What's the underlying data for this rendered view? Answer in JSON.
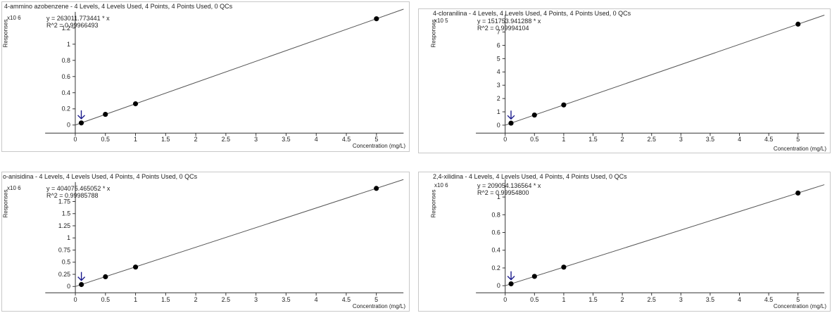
{
  "chart_data": [
    {
      "type": "scatter",
      "title": "4-ammino azobenzene - 4 Levels, 4 Levels Used, 4 Points, 4 Points Used, 0 QCs",
      "equation": "y = 263011.773441 * x",
      "r2": "R^2 = 0.99966493",
      "scale_label": "x10 6",
      "ylabel": "Responses",
      "xlabel": "Concentration (mg/L)",
      "x_ticks": [
        "0",
        "0.5",
        "1",
        "1.5",
        "2",
        "2.5",
        "3",
        "3.5",
        "4",
        "4.5",
        "5"
      ],
      "y_ticks": [
        "0",
        "0.2",
        "0.4",
        "0.6",
        "0.8",
        "1",
        "1.2"
      ],
      "xlim": [
        -0.5,
        5.45
      ],
      "ylim": [
        -0.1,
        1.4
      ],
      "series": [
        {
          "x": [
            0.1,
            0.5,
            1,
            5
          ],
          "y": [
            0.026,
            0.132,
            0.263,
            1.315
          ]
        }
      ],
      "fit": {
        "slope": 0.263011773441
      },
      "arrow_at_x": 0.1,
      "color": "#000000",
      "arrow_color": "#1a1a8c"
    },
    {
      "type": "scatter",
      "title": "4-cloranilina - 4 Levels, 4 Levels Used, 4 Points, 4 Points Used, 0 QCs",
      "equation": "y = 151753.941288 * x",
      "r2": "R^2 = 0.99994104",
      "scale_label": "x10 5",
      "ylabel": "Responses",
      "xlabel": "Concentration (mg/L)",
      "x_ticks": [
        "0",
        "0.5",
        "1",
        "1.5",
        "2",
        "2.5",
        "3",
        "3.5",
        "4",
        "4.5",
        "5"
      ],
      "y_ticks": [
        "0",
        "1",
        "2",
        "3",
        "4",
        "5",
        "6",
        "7"
      ],
      "xlim": [
        -0.5,
        5.45
      ],
      "ylim": [
        -0.6,
        8.3
      ],
      "series": [
        {
          "x": [
            0.1,
            0.5,
            1,
            5
          ],
          "y": [
            0.15,
            0.76,
            1.52,
            7.59
          ]
        }
      ],
      "fit": {
        "slope": 1.51753941288
      },
      "arrow_at_x": 0.1,
      "color": "#000000",
      "arrow_color": "#1a1a8c"
    },
    {
      "type": "scatter",
      "title": "o-anisidina - 4 Levels, 4 Levels Used, 4 Points, 4 Points Used, 0 QCs",
      "equation": "y = 404075.465052 * x",
      "r2": "R^2 = 0.99985788",
      "scale_label": "x10 6",
      "ylabel": "Responses",
      "xlabel": "Concentration (mg/L)",
      "x_ticks": [
        "0",
        "0.5",
        "1",
        "1.5",
        "2",
        "2.5",
        "3",
        "3.5",
        "4",
        "4.5",
        "5"
      ],
      "y_ticks": [
        "0",
        "0.25",
        "0.5",
        "0.75",
        "1",
        "1.25",
        "1.5",
        "1.75"
      ],
      "xlim": [
        -0.5,
        5.45
      ],
      "ylim": [
        -0.13,
        2.15
      ],
      "series": [
        {
          "x": [
            0.1,
            0.5,
            1,
            5
          ],
          "y": [
            0.04,
            0.2,
            0.4,
            2.02
          ]
        }
      ],
      "fit": {
        "slope": 0.404075465052
      },
      "arrow_at_x": 0.1,
      "color": "#000000",
      "arrow_color": "#1a1a8c"
    },
    {
      "type": "scatter",
      "title": "2,4-xilidina - 4 Levels, 4 Levels Used, 4 Points, 4 Points Used, 0 QCs",
      "equation": "y = 209054.136564 * x",
      "r2": "R^2 = 0.99954800",
      "scale_label": "x10 6",
      "ylabel": "Responses",
      "xlabel": "Concentration (mg/L)",
      "x_ticks": [
        "0",
        "0.5",
        "1",
        "1.5",
        "2",
        "2.5",
        "3",
        "3.5",
        "4",
        "4.5",
        "5"
      ],
      "y_ticks": [
        "0",
        "0.2",
        "0.4",
        "0.6",
        "0.8",
        "1"
      ],
      "xlim": [
        -0.5,
        5.45
      ],
      "ylim": [
        -0.08,
        1.2
      ],
      "series": [
        {
          "x": [
            0.1,
            0.5,
            1,
            5
          ],
          "y": [
            0.021,
            0.105,
            0.209,
            1.045
          ]
        }
      ],
      "fit": {
        "slope": 0.209054136564
      },
      "arrow_at_x": 0.1,
      "color": "#000000",
      "arrow_color": "#1a1a8c"
    }
  ]
}
